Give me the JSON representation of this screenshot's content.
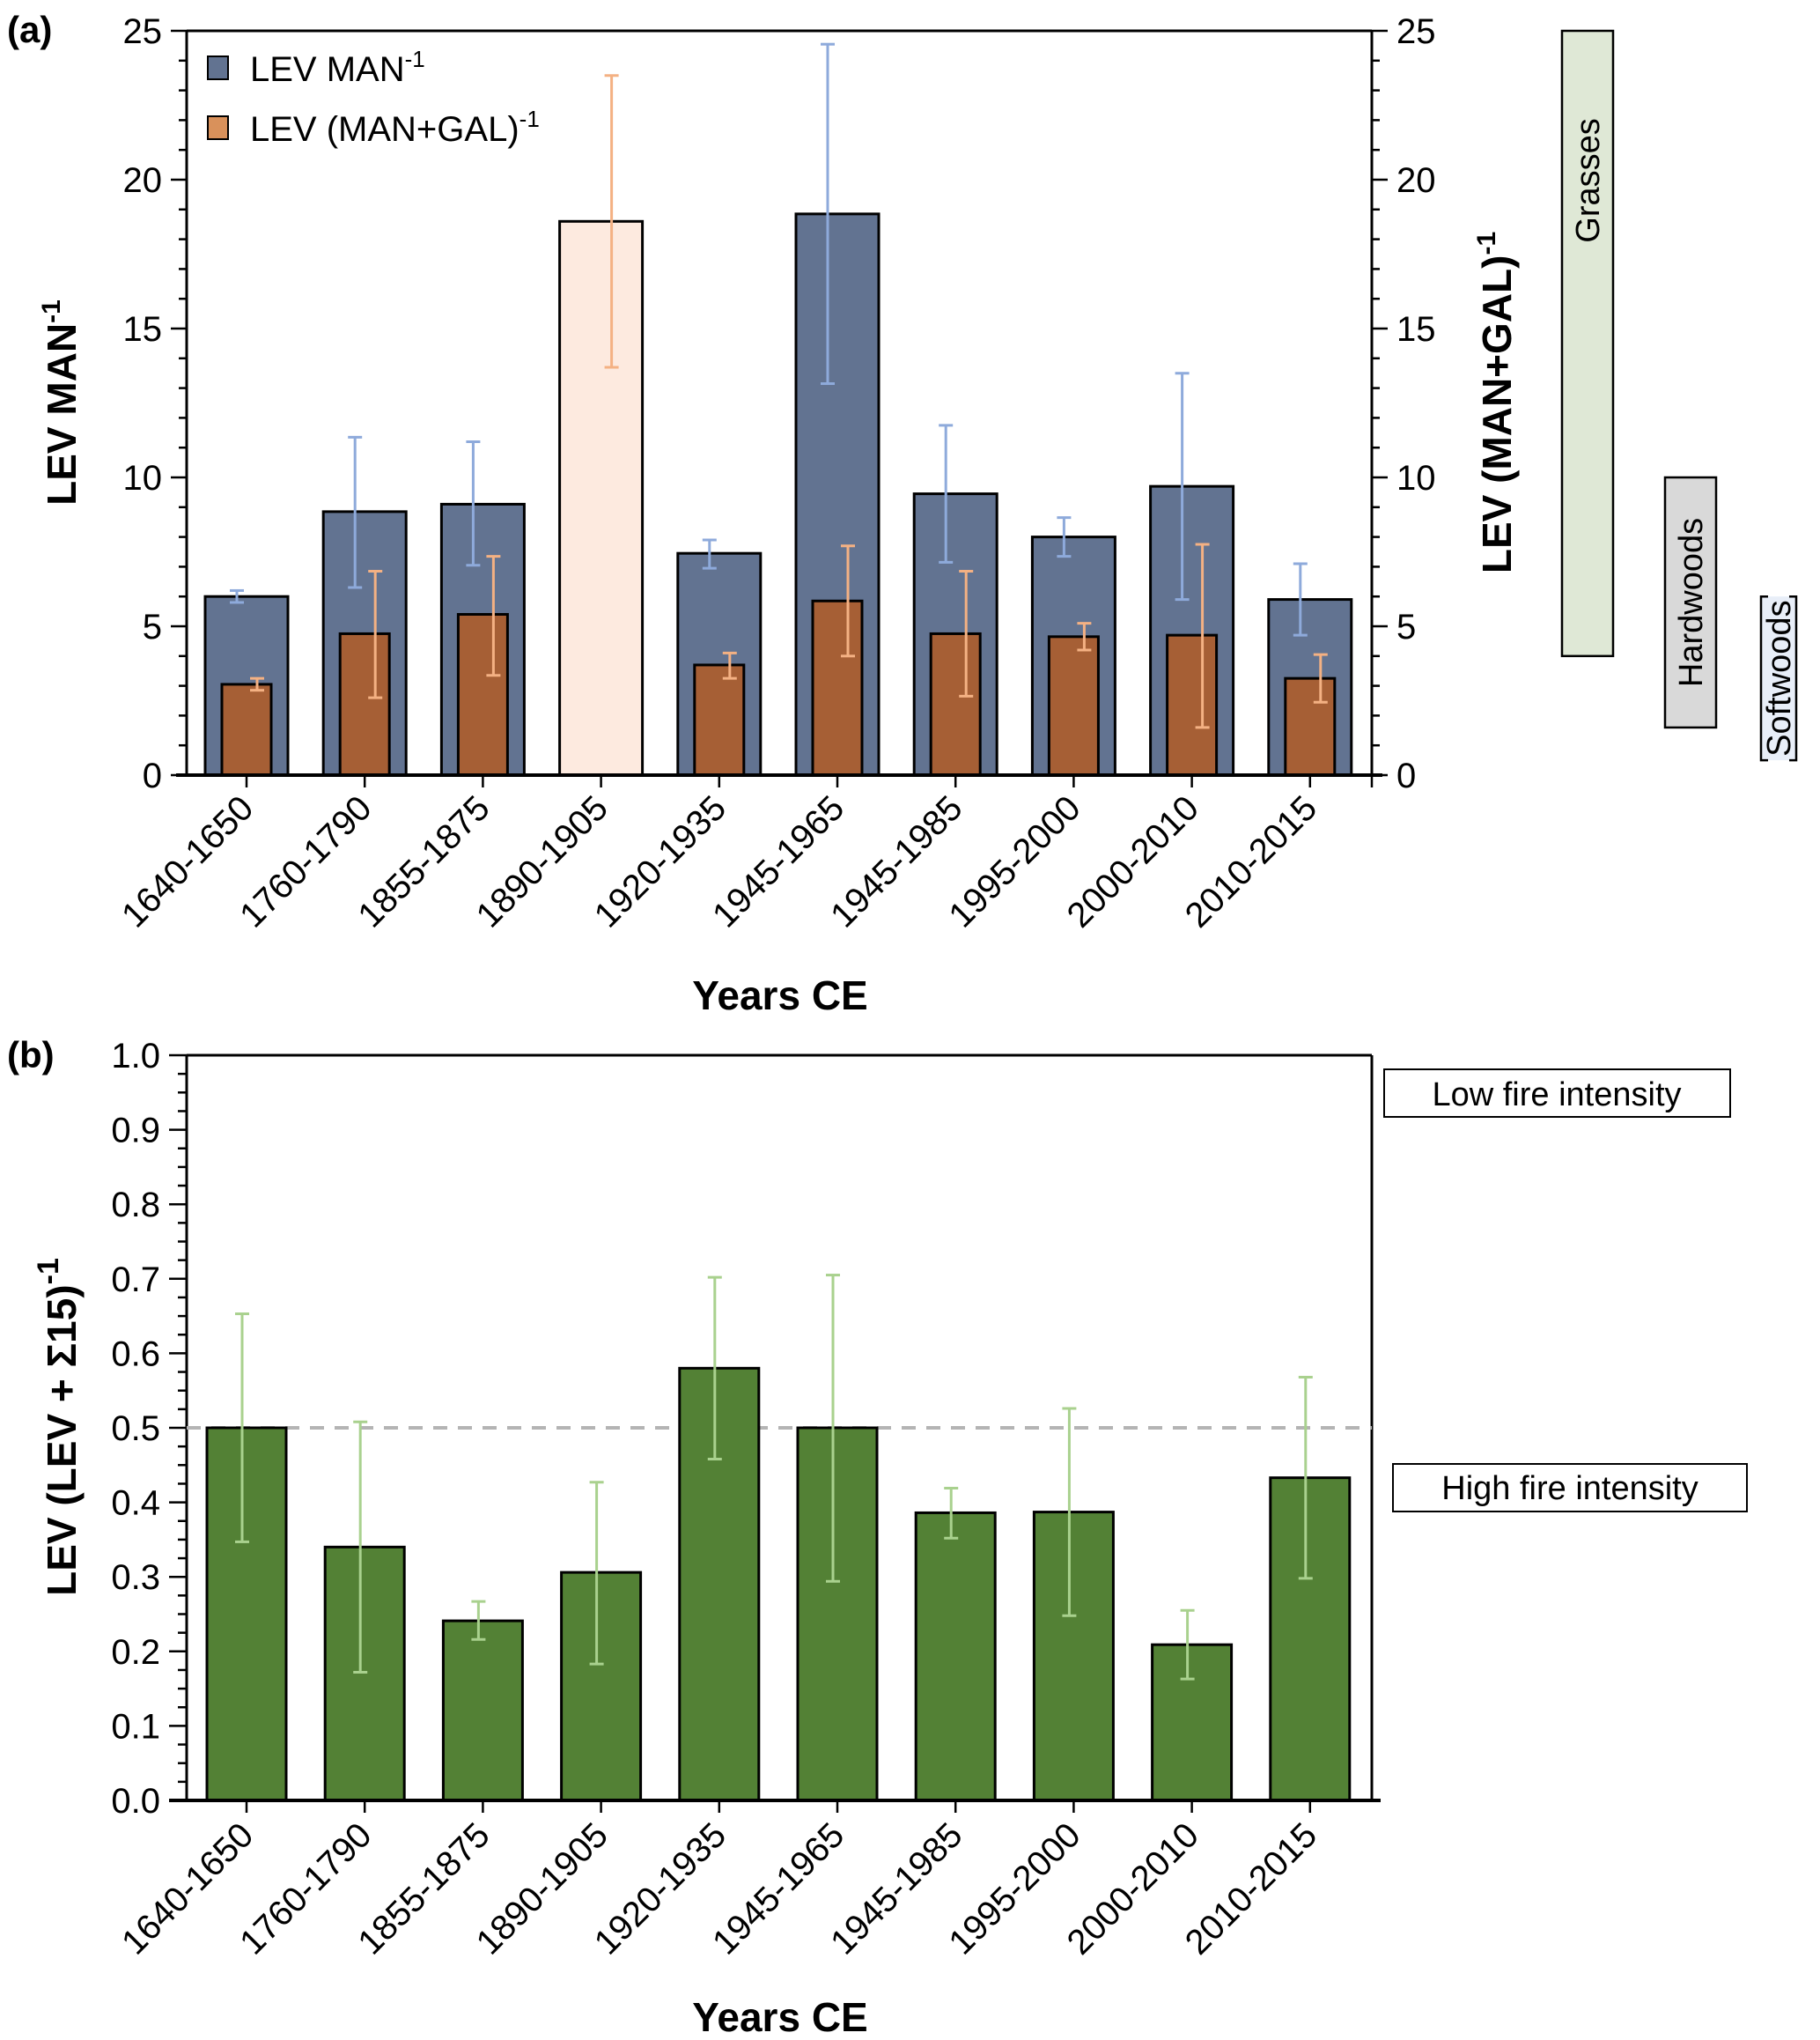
{
  "chart_data": [
    {
      "panel": "(a)",
      "type": "bar",
      "categories": [
        "1640-1650",
        "1760-1790",
        "1855-1875",
        "1890-1905",
        "1920-1935",
        "1945-1965",
        "1945-1985",
        "1995-2000",
        "2000-2010",
        "2010-2015"
      ],
      "xlabel": "Years CE",
      "ylabel": "LEV MAN",
      "ylabel_sup": "-1",
      "ylabel_right": "LEV (MAN+GAL)",
      "ylabel_right_sup": "-1",
      "ylim": [
        0,
        25
      ],
      "yticks": [
        0,
        5,
        10,
        15,
        20,
        25
      ],
      "grid": false,
      "legend_position": "top-left",
      "series": [
        {
          "name": "LEV MAN",
          "name_sup": "-1",
          "color": "#627391",
          "error_color": "#8eaadb",
          "axis": "left",
          "values": [
            6.0,
            8.85,
            9.1,
            null,
            7.45,
            18.85,
            9.45,
            8.0,
            9.7,
            5.9
          ],
          "error_low": [
            5.8,
            6.3,
            7.05,
            null,
            6.95,
            13.15,
            7.15,
            7.35,
            5.9,
            4.7
          ],
          "error_high": [
            6.2,
            11.35,
            11.2,
            null,
            7.9,
            24.55,
            11.75,
            8.65,
            13.5,
            7.1
          ]
        },
        {
          "name": "LEV (MAN+GAL)",
          "name_sup": "-1",
          "color": "#a65f35",
          "legend_color": "#d9915b",
          "error_color": "#f4b183",
          "axis": "right",
          "values": [
            3.05,
            4.75,
            5.4,
            18.6,
            3.7,
            5.85,
            4.75,
            4.65,
            4.7,
            3.25
          ],
          "error_low": [
            2.85,
            2.6,
            3.35,
            13.7,
            3.25,
            4.0,
            2.65,
            4.2,
            1.6,
            2.45
          ],
          "error_high": [
            3.25,
            6.85,
            7.35,
            23.5,
            4.1,
            7.7,
            6.85,
            5.1,
            7.75,
            4.05
          ],
          "highlight_index": 3,
          "highlight_color": "#fdeadf"
        }
      ],
      "annotations": [
        {
          "label": "Grasses",
          "range": [
            4.0,
            25.0
          ],
          "color": "#dfe8d6"
        },
        {
          "label": "Hardwoods",
          "range": [
            1.6,
            10.0
          ],
          "color": "#d9d9d9"
        },
        {
          "label": "Softwoods",
          "range": [
            0.5,
            6.0
          ],
          "color": "#e8eef8"
        }
      ]
    },
    {
      "panel": "(b)",
      "type": "bar",
      "categories": [
        "1640-1650",
        "1760-1790",
        "1855-1875",
        "1890-1905",
        "1920-1935",
        "1945-1965",
        "1945-1985",
        "1995-2000",
        "2000-2010",
        "2010-2015"
      ],
      "xlabel": "Years CE",
      "ylabel": "LEV (LEV + Σ15)",
      "ylabel_sup": "-1",
      "ylim": [
        0.0,
        1.0
      ],
      "yticks": [
        "0.0",
        "0.1",
        "0.2",
        "0.3",
        "0.4",
        "0.5",
        "0.6",
        "0.7",
        "0.8",
        "0.9",
        "1.0"
      ],
      "grid": false,
      "reference_line": 0.5,
      "series": [
        {
          "name": "LEV (LEV + Σ15)^-1",
          "color": "#538135",
          "error_color": "#a9d18e",
          "values": [
            0.5,
            0.34,
            0.241,
            0.306,
            0.58,
            0.5,
            0.386,
            0.387,
            0.209,
            0.433
          ],
          "error_low": [
            0.347,
            0.172,
            0.216,
            0.183,
            0.458,
            0.294,
            0.352,
            0.248,
            0.163,
            0.298
          ],
          "error_high": [
            0.653,
            0.508,
            0.267,
            0.427,
            0.702,
            0.705,
            0.419,
            0.526,
            0.255,
            0.568
          ]
        }
      ],
      "annotations": [
        {
          "label": "Low fire intensity",
          "position": "top-right"
        },
        {
          "label": "High fire intensity",
          "position": "bottom-right"
        }
      ]
    }
  ]
}
